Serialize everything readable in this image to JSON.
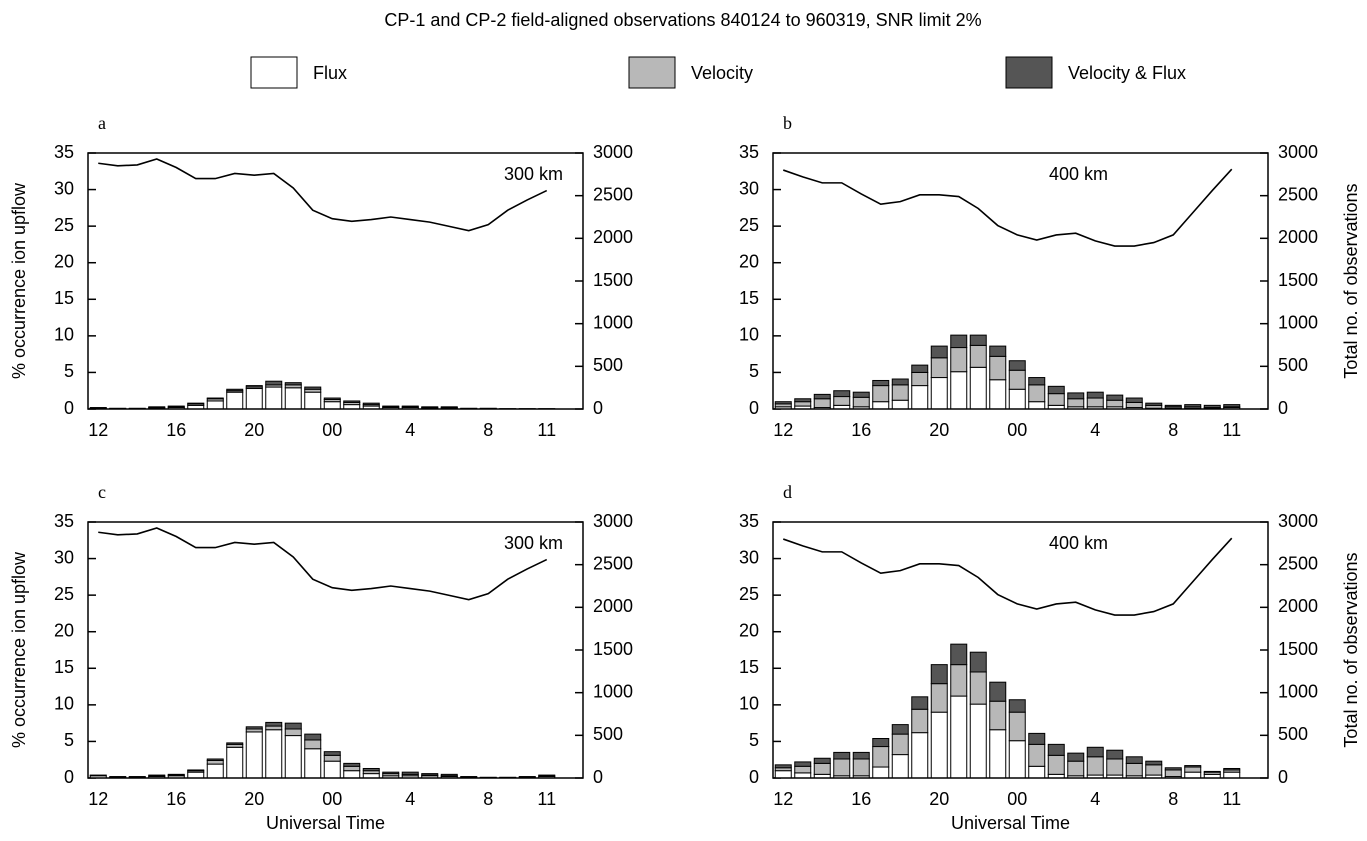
{
  "title": "CP-1 and CP-2 field-aligned observations 840124 to 960319, SNR limit 2%",
  "legend": [
    {
      "name": "Flux",
      "color": "#ffffff"
    },
    {
      "name": "Velocity",
      "color": "#b8b8b8"
    },
    {
      "name": "Velocity & Flux",
      "color": "#555555"
    }
  ],
  "chart_data": [
    {
      "type": "bar",
      "panel_label": "a",
      "annotation": "300 km",
      "ylabel": "% occurrence ion upflow",
      "categories": [
        "12",
        null,
        null,
        null,
        "16",
        null,
        null,
        null,
        "20",
        null,
        null,
        null,
        "00",
        null,
        null,
        null,
        "4",
        null,
        null,
        null,
        "8",
        null,
        null,
        "11"
      ],
      "series": [
        {
          "values": [
            0.1,
            0.05,
            0.05,
            0.1,
            0.2,
            0.5,
            1.1,
            2.3,
            2.8,
            3.0,
            2.9,
            2.3,
            1.0,
            0.6,
            0.4,
            0.2,
            0.2,
            0.1,
            0.1,
            0,
            0,
            0,
            0,
            0
          ]
        },
        {
          "values": [
            0,
            0,
            0,
            0.1,
            0.1,
            0.2,
            0.3,
            0.2,
            0.2,
            0.3,
            0.4,
            0.4,
            0.3,
            0.3,
            0.2,
            0.1,
            0.1,
            0.1,
            0.1,
            0.05,
            0.05,
            0,
            0,
            0
          ]
        },
        {
          "values": [
            0.1,
            0.05,
            0.05,
            0.1,
            0.1,
            0.1,
            0.1,
            0.2,
            0.2,
            0.5,
            0.3,
            0.3,
            0.2,
            0.2,
            0.2,
            0.1,
            0.1,
            0.1,
            0.1,
            0.05,
            0.05,
            0.05,
            0.05,
            0.05
          ]
        }
      ],
      "line": {
        "axis": "y2",
        "color": "#000000",
        "values": [
          2880,
          2850,
          2860,
          2930,
          2830,
          2700,
          2700,
          2760,
          2740,
          2760,
          2590,
          2330,
          2230,
          2200,
          2220,
          2250,
          2220,
          2190,
          2140,
          2090,
          2160,
          2330,
          2450,
          2560
        ]
      },
      "ylim": [
        0,
        35
      ],
      "yticks": [
        0,
        5,
        10,
        15,
        20,
        25,
        30,
        35
      ],
      "y2lim": [
        0,
        3000
      ],
      "y2ticks": [
        0,
        500,
        1000,
        1500,
        2000,
        2500,
        3000
      ]
    },
    {
      "type": "bar",
      "panel_label": "b",
      "annotation": "400 km",
      "y2label": "Total no. of observations",
      "categories": [
        "12",
        null,
        null,
        null,
        "16",
        null,
        null,
        null,
        "20",
        null,
        null,
        null,
        "00",
        null,
        null,
        null,
        "4",
        null,
        null,
        null,
        "8",
        null,
        null,
        "11"
      ],
      "series": [
        {
          "values": [
            0.3,
            0.4,
            0.2,
            0.5,
            0.3,
            1.0,
            1.2,
            3.2,
            4.3,
            5.1,
            5.7,
            4.0,
            2.7,
            1.0,
            0.5,
            0.3,
            0.3,
            0.3,
            0.2,
            0.1,
            0.1,
            0.1,
            0.1,
            0.2
          ]
        },
        {
          "values": [
            0.4,
            0.6,
            1.2,
            1.2,
            1.3,
            2.2,
            2.1,
            1.8,
            2.7,
            3.3,
            3.0,
            3.2,
            2.6,
            2.3,
            1.6,
            1.1,
            1.2,
            0.9,
            0.7,
            0.4,
            0.2,
            0.2,
            0.1,
            0.1
          ]
        },
        {
          "values": [
            0.3,
            0.4,
            0.6,
            0.8,
            0.7,
            0.7,
            0.8,
            1.0,
            1.6,
            1.7,
            1.4,
            1.4,
            1.3,
            1.0,
            1.0,
            0.8,
            0.8,
            0.7,
            0.6,
            0.3,
            0.2,
            0.3,
            0.3,
            0.3
          ]
        }
      ],
      "line": {
        "axis": "y2",
        "color": "#000000",
        "values": [
          2800,
          2720,
          2650,
          2650,
          2520,
          2400,
          2430,
          2510,
          2510,
          2490,
          2350,
          2150,
          2040,
          1980,
          2040,
          2060,
          1970,
          1910,
          1910,
          1950,
          2040,
          2300,
          2560,
          2810
        ]
      },
      "ylim": [
        0,
        35
      ],
      "yticks": [
        0,
        5,
        10,
        15,
        20,
        25,
        30,
        35
      ],
      "y2lim": [
        0,
        3000
      ],
      "y2ticks": [
        0,
        500,
        1000,
        1500,
        2000,
        2500,
        3000
      ]
    },
    {
      "type": "bar",
      "panel_label": "c",
      "annotation": "300 km",
      "ylabel": "% occurrence ion upflow",
      "xlabel": "Universal Time",
      "categories": [
        "12",
        null,
        null,
        null,
        "16",
        null,
        null,
        null,
        "20",
        null,
        null,
        null,
        "00",
        null,
        null,
        null,
        "4",
        null,
        null,
        null,
        "8",
        null,
        null,
        "11"
      ],
      "series": [
        {
          "values": [
            0.3,
            0.1,
            0.1,
            0.2,
            0.3,
            0.8,
            1.9,
            4.2,
            6.3,
            6.6,
            5.8,
            4.0,
            2.3,
            1.0,
            0.6,
            0.3,
            0.3,
            0.3,
            0.2,
            0.1,
            0.05,
            0.05,
            0.1,
            0.2
          ]
        },
        {
          "values": [
            0,
            0,
            0,
            0.1,
            0.1,
            0.2,
            0.5,
            0.4,
            0.4,
            0.5,
            0.9,
            1.2,
            0.8,
            0.6,
            0.4,
            0.3,
            0.2,
            0.1,
            0.1,
            0,
            0,
            0,
            0,
            0.1
          ]
        },
        {
          "values": [
            0.1,
            0.1,
            0.1,
            0.1,
            0.1,
            0.1,
            0.2,
            0.2,
            0.3,
            0.5,
            0.8,
            0.8,
            0.5,
            0.4,
            0.3,
            0.2,
            0.3,
            0.2,
            0.2,
            0.1,
            0.05,
            0.05,
            0.1,
            0.1
          ]
        }
      ],
      "line": {
        "axis": "y2",
        "color": "#000000",
        "values": [
          2880,
          2850,
          2860,
          2930,
          2830,
          2700,
          2700,
          2760,
          2740,
          2760,
          2590,
          2330,
          2230,
          2200,
          2220,
          2250,
          2220,
          2190,
          2140,
          2090,
          2160,
          2330,
          2450,
          2560
        ]
      },
      "ylim": [
        0,
        35
      ],
      "yticks": [
        0,
        5,
        10,
        15,
        20,
        25,
        30,
        35
      ],
      "y2lim": [
        0,
        3000
      ],
      "y2ticks": [
        0,
        500,
        1000,
        1500,
        2000,
        2500,
        3000
      ]
    },
    {
      "type": "bar",
      "panel_label": "d",
      "annotation": "400 km",
      "y2label": "Total no. of observations",
      "xlabel": "Universal Time",
      "categories": [
        "12",
        null,
        null,
        null,
        "16",
        null,
        null,
        null,
        "20",
        null,
        null,
        null,
        "00",
        null,
        null,
        null,
        "4",
        null,
        null,
        null,
        "8",
        null,
        null,
        "11"
      ],
      "series": [
        {
          "values": [
            1.0,
            0.7,
            0.5,
            0.3,
            0.3,
            1.5,
            3.2,
            6.2,
            9.0,
            11.2,
            10.1,
            6.6,
            5.1,
            1.6,
            0.5,
            0.3,
            0.4,
            0.4,
            0.3,
            0.4,
            0.2,
            0.8,
            0.5,
            0.8
          ]
        },
        {
          "values": [
            0.4,
            0.9,
            1.5,
            2.3,
            2.3,
            2.8,
            2.8,
            3.2,
            3.9,
            4.3,
            4.4,
            3.9,
            3.9,
            3.0,
            2.6,
            2.0,
            2.5,
            2.2,
            1.7,
            1.4,
            0.9,
            0.7,
            0.3,
            0.3
          ]
        },
        {
          "values": [
            0.4,
            0.6,
            0.7,
            0.9,
            0.9,
            1.1,
            1.3,
            1.7,
            2.6,
            2.8,
            2.7,
            2.6,
            1.7,
            1.5,
            1.5,
            1.1,
            1.3,
            1.2,
            0.9,
            0.5,
            0.3,
            0.2,
            0.1,
            0.2
          ]
        }
      ],
      "line": {
        "axis": "y2",
        "color": "#000000",
        "values": [
          2800,
          2720,
          2650,
          2650,
          2520,
          2400,
          2430,
          2510,
          2510,
          2490,
          2350,
          2150,
          2040,
          1980,
          2040,
          2060,
          1970,
          1910,
          1910,
          1950,
          2040,
          2300,
          2560,
          2810
        ]
      },
      "ylim": [
        0,
        35
      ],
      "yticks": [
        0,
        5,
        10,
        15,
        20,
        25,
        30,
        35
      ],
      "y2lim": [
        0,
        3000
      ],
      "y2ticks": [
        0,
        500,
        1000,
        1500,
        2000,
        2500,
        3000
      ]
    }
  ]
}
